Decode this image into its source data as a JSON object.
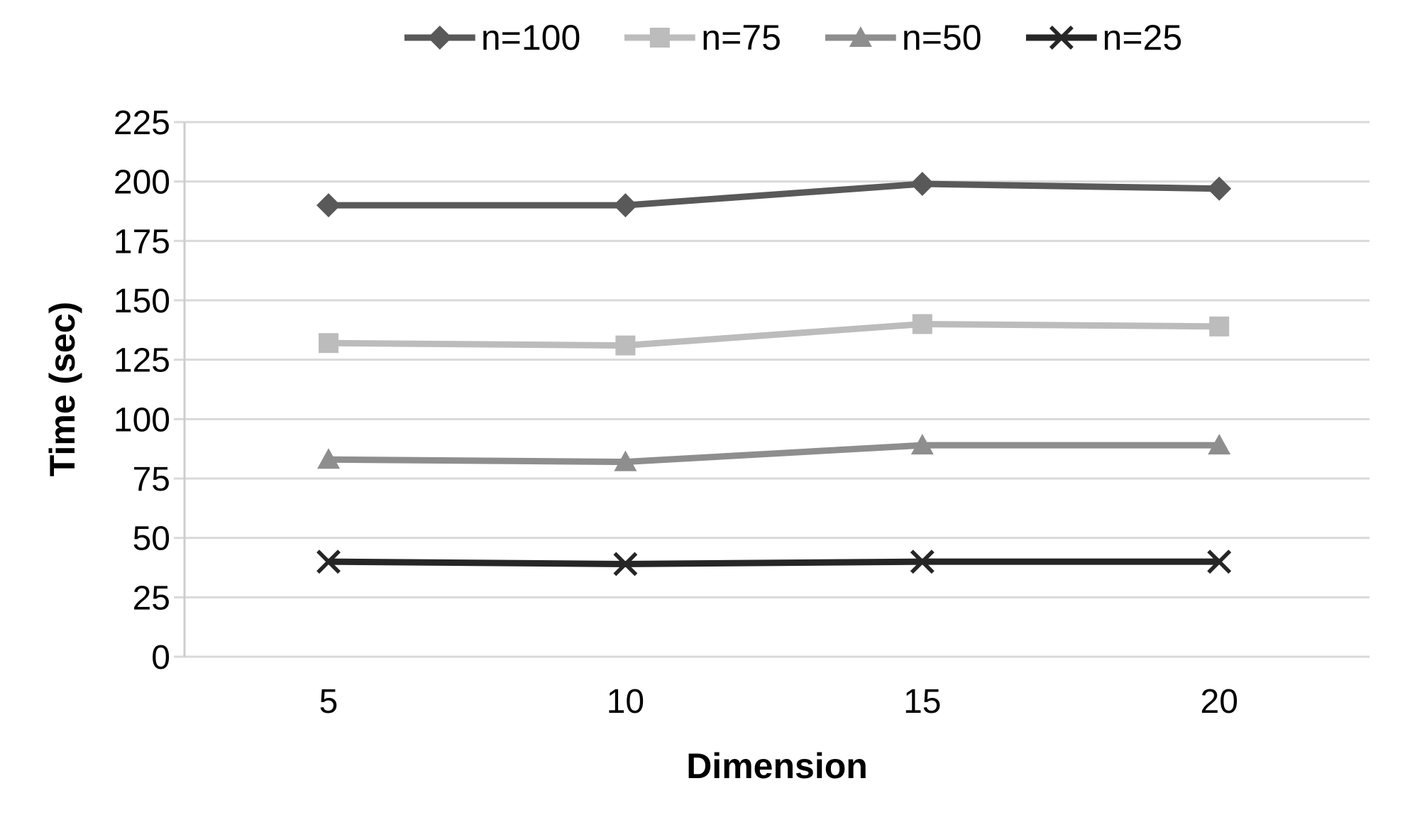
{
  "chart_data": {
    "type": "line",
    "title": "",
    "xlabel": "Dimension",
    "ylabel": "Time (sec)",
    "x": [
      5,
      10,
      15,
      20
    ],
    "ylim": [
      0,
      225
    ],
    "yticks": [
      0,
      25,
      50,
      75,
      100,
      125,
      150,
      175,
      200,
      225
    ],
    "grid": true,
    "legend_position": "top",
    "series": [
      {
        "name": "n=100",
        "marker": "diamond",
        "color": "#595959",
        "values": [
          190,
          190,
          199,
          197
        ]
      },
      {
        "name": "n=75",
        "marker": "square",
        "color": "#bcbcbc",
        "values": [
          132,
          131,
          140,
          139
        ]
      },
      {
        "name": "n=50",
        "marker": "triangle",
        "color": "#8e8e8e",
        "values": [
          83,
          82,
          89,
          89
        ]
      },
      {
        "name": "n=25",
        "marker": "x",
        "color": "#262626",
        "values": [
          40,
          39,
          40,
          40
        ]
      }
    ],
    "colors": {
      "gridline": "#d9d9d9",
      "axis_line": "#cdcdcd",
      "tick_label": "#000000"
    }
  }
}
